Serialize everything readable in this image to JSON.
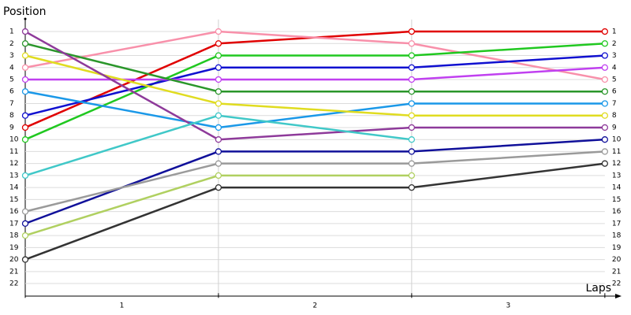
{
  "chart_data": {
    "type": "line",
    "title": "Position",
    "xlabel": "Laps",
    "x": [
      0,
      1,
      2,
      3
    ],
    "xlim": [
      0,
      3.07
    ],
    "xticks": [
      {
        "value": 0.5,
        "label": "1"
      },
      {
        "value": 1.5,
        "label": "2"
      },
      {
        "value": 2.5,
        "label": "3"
      }
    ],
    "ylim": [
      23,
      0
    ],
    "yticks": [
      1,
      2,
      3,
      4,
      5,
      6,
      7,
      8,
      9,
      10,
      11,
      12,
      13,
      14,
      15,
      16,
      17,
      18,
      19,
      20,
      21,
      22
    ],
    "grid": true,
    "series": [
      {
        "color": "#e00000",
        "values": [
          9,
          2,
          1,
          1
        ]
      },
      {
        "color": "#f890aa",
        "values": [
          4,
          1,
          2,
          5
        ]
      },
      {
        "color": "#20c820",
        "values": [
          10,
          3,
          3,
          2
        ]
      },
      {
        "color": "#1010d0",
        "values": [
          8,
          4,
          4,
          3
        ]
      },
      {
        "color": "#c040f0",
        "values": [
          5,
          5,
          5,
          4
        ]
      },
      {
        "color": "#2a962a",
        "values": [
          2,
          6,
          6,
          6
        ]
      },
      {
        "color": "#1a98e8",
        "values": [
          6,
          9,
          7,
          7
        ]
      },
      {
        "color": "#e0dc20",
        "values": [
          3,
          7,
          8,
          8
        ]
      },
      {
        "color": "#8e3a9a",
        "values": [
          1,
          10,
          9,
          9
        ]
      },
      {
        "color": "#40c8c8",
        "values": [
          13,
          8,
          10,
          null
        ]
      },
      {
        "color": "#10109a",
        "values": [
          17,
          11,
          11,
          10
        ]
      },
      {
        "color": "#9a9a9a",
        "values": [
          16,
          12,
          12,
          11
        ]
      },
      {
        "color": "#b0d060",
        "values": [
          18,
          13,
          13,
          null
        ]
      },
      {
        "color": "#333333",
        "values": [
          20,
          14,
          14,
          12
        ]
      }
    ]
  }
}
